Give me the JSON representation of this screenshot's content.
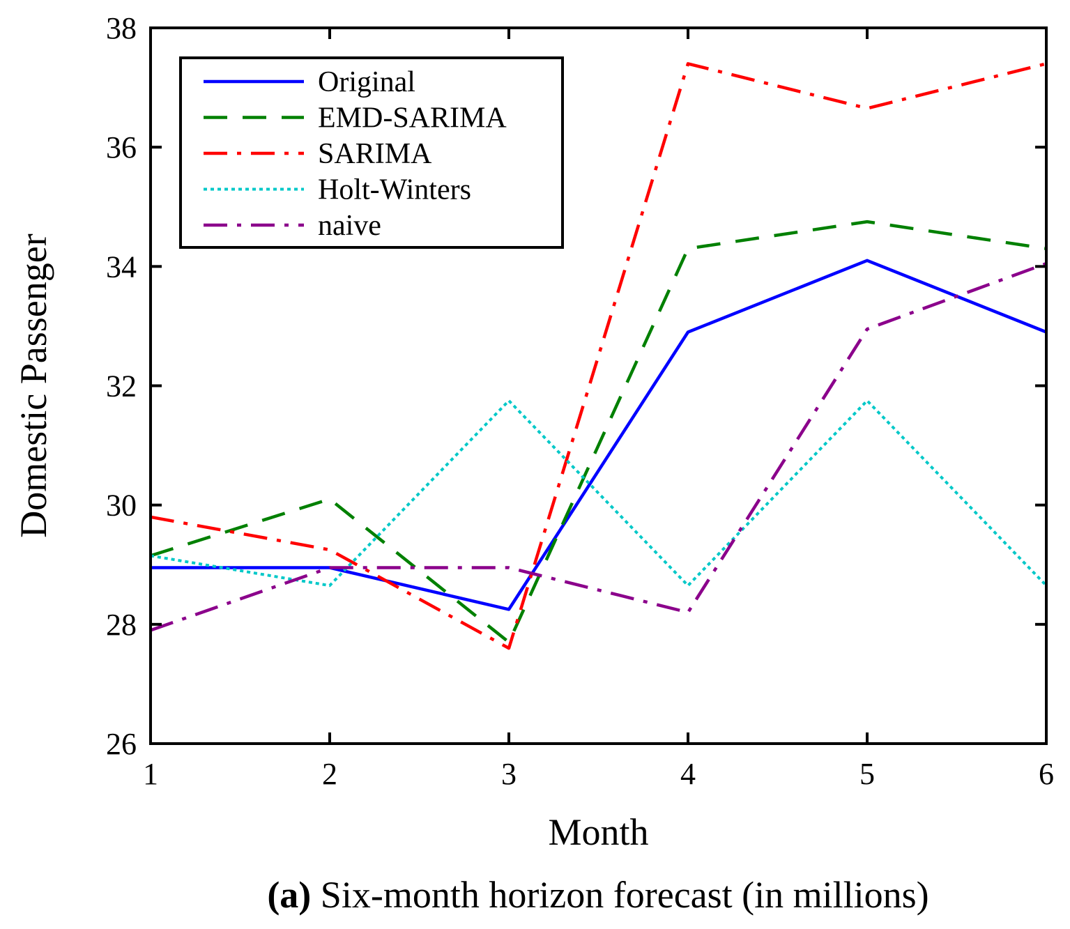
{
  "chart_data": {
    "type": "line",
    "title": "",
    "xlabel": "Month",
    "ylabel": "Domestic Passenger",
    "caption": {
      "prefix": "(a)",
      "text": " Six-month horizon forecast (in millions)"
    },
    "x": [
      1,
      2,
      3,
      4,
      5,
      6
    ],
    "xlim": [
      1,
      6
    ],
    "ylim": [
      26,
      38
    ],
    "xticks": [
      1,
      2,
      3,
      4,
      5,
      6
    ],
    "yticks": [
      26,
      28,
      30,
      32,
      34,
      36,
      38
    ],
    "grid": false,
    "legend_position": "top-left",
    "series": [
      {
        "name": "Original",
        "color": "#0000ff",
        "style": "solid",
        "values": [
          28.95,
          28.95,
          28.25,
          32.9,
          34.1,
          32.9
        ]
      },
      {
        "name": "EMD-SARIMA",
        "color": "#008000",
        "style": "dashed",
        "values": [
          29.15,
          30.1,
          27.7,
          34.3,
          34.75,
          34.3
        ]
      },
      {
        "name": "SARIMA",
        "color": "#ff0000",
        "style": "dashdot",
        "values": [
          29.8,
          29.25,
          27.6,
          37.4,
          36.65,
          37.4
        ]
      },
      {
        "name": "Holt-Winters",
        "color": "#00c8c8",
        "style": "dotted",
        "values": [
          29.15,
          28.65,
          31.75,
          28.65,
          31.75,
          28.65
        ]
      },
      {
        "name": "naive",
        "color": "#8b008b",
        "style": "dashdot",
        "values": [
          27.9,
          28.95,
          28.95,
          28.2,
          32.95,
          34.05
        ]
      }
    ]
  }
}
